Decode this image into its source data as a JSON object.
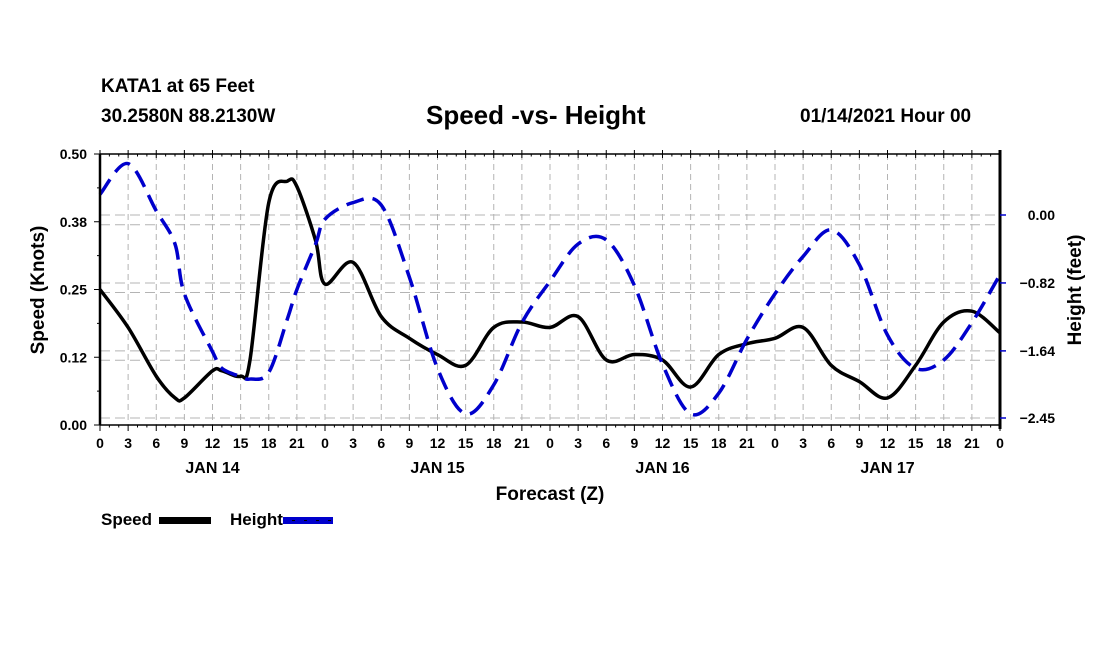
{
  "header": {
    "station": "KATA1 at 65 Feet",
    "coordinates": "30.2580N 88.2130W",
    "title": "Speed -vs- Height",
    "issued": "01/14/2021 Hour 00"
  },
  "colors": {
    "speed": "#000000",
    "height": "#0000cc",
    "grid": "#b4b4b4"
  },
  "legend": [
    {
      "label": "Speed",
      "style": "solid",
      "color": "#000000"
    },
    {
      "label": "Height",
      "style": "dashed",
      "color": "#0000cc"
    }
  ],
  "chart_data": {
    "type": "line",
    "title": "Speed -vs- Height",
    "xlabel": "Forecast (Z)",
    "ylabel": "Speed (Knots)",
    "y2label": "Height (feet)",
    "xlim": [
      0,
      96
    ],
    "ylim": [
      0,
      0.5
    ],
    "y2lim": [
      -2.52,
      0.74
    ],
    "x_tick_labels": [
      "0",
      "3",
      "6",
      "9",
      "12",
      "15",
      "18",
      "21",
      "0",
      "3",
      "6",
      "9",
      "12",
      "15",
      "18",
      "21",
      "0",
      "3",
      "6",
      "9",
      "12",
      "15",
      "18",
      "21",
      "0",
      "3",
      "6",
      "9",
      "12",
      "15",
      "18",
      "21",
      "0"
    ],
    "day_labels": [
      {
        "label": "JAN 14",
        "hour": 12
      },
      {
        "label": "JAN 15",
        "hour": 36
      },
      {
        "label": "JAN 16",
        "hour": 60
      },
      {
        "label": "JAN 17",
        "hour": 84
      }
    ],
    "y_ticks": [
      "0.00",
      "0.12",
      "0.25",
      "0.38",
      "0.50"
    ],
    "y_tick_values": [
      0,
      0.125,
      0.25,
      0.375,
      0.5
    ],
    "y2_ticks": [
      "0.00",
      "-0.82",
      "-1.64",
      "-2.45"
    ],
    "y2_tick_values": [
      0,
      -0.82,
      -1.64,
      -2.45
    ],
    "grid": true,
    "legend_position": "bottom-left",
    "x": [
      0,
      3,
      6,
      8,
      9,
      12,
      13,
      15,
      16,
      18,
      20,
      21,
      23,
      24,
      27,
      30,
      33,
      36,
      39,
      42,
      45,
      48,
      51,
      54,
      57,
      60,
      63,
      66,
      69,
      72,
      75,
      78,
      81,
      84,
      87,
      90,
      93,
      96
    ],
    "series": [
      {
        "name": "Speed",
        "axis": "left",
        "values": [
          0.25,
          0.18,
          0.09,
          0.05,
          0.05,
          0.1,
          0.1,
          0.09,
          0.12,
          0.41,
          0.45,
          0.44,
          0.34,
          0.26,
          0.3,
          0.2,
          0.16,
          0.13,
          0.11,
          0.18,
          0.19,
          0.18,
          0.2,
          0.12,
          0.13,
          0.12,
          0.07,
          0.13,
          0.15,
          0.16,
          0.18,
          0.11,
          0.08,
          0.05,
          0.11,
          0.19,
          0.21,
          0.17
        ]
      },
      {
        "name": "Height",
        "axis": "right",
        "values": [
          0.25,
          0.62,
          0.05,
          -0.35,
          -0.95,
          -1.65,
          -1.85,
          -1.95,
          -1.98,
          -1.9,
          -1.25,
          -0.9,
          -0.35,
          -0.05,
          0.15,
          0.12,
          -0.75,
          -1.85,
          -2.4,
          -2.05,
          -1.3,
          -0.8,
          -0.35,
          -0.3,
          -0.85,
          -1.8,
          -2.4,
          -2.15,
          -1.5,
          -0.95,
          -0.5,
          -0.18,
          -0.6,
          -1.45,
          -1.85,
          -1.75,
          -1.3,
          -0.72
        ]
      }
    ]
  }
}
